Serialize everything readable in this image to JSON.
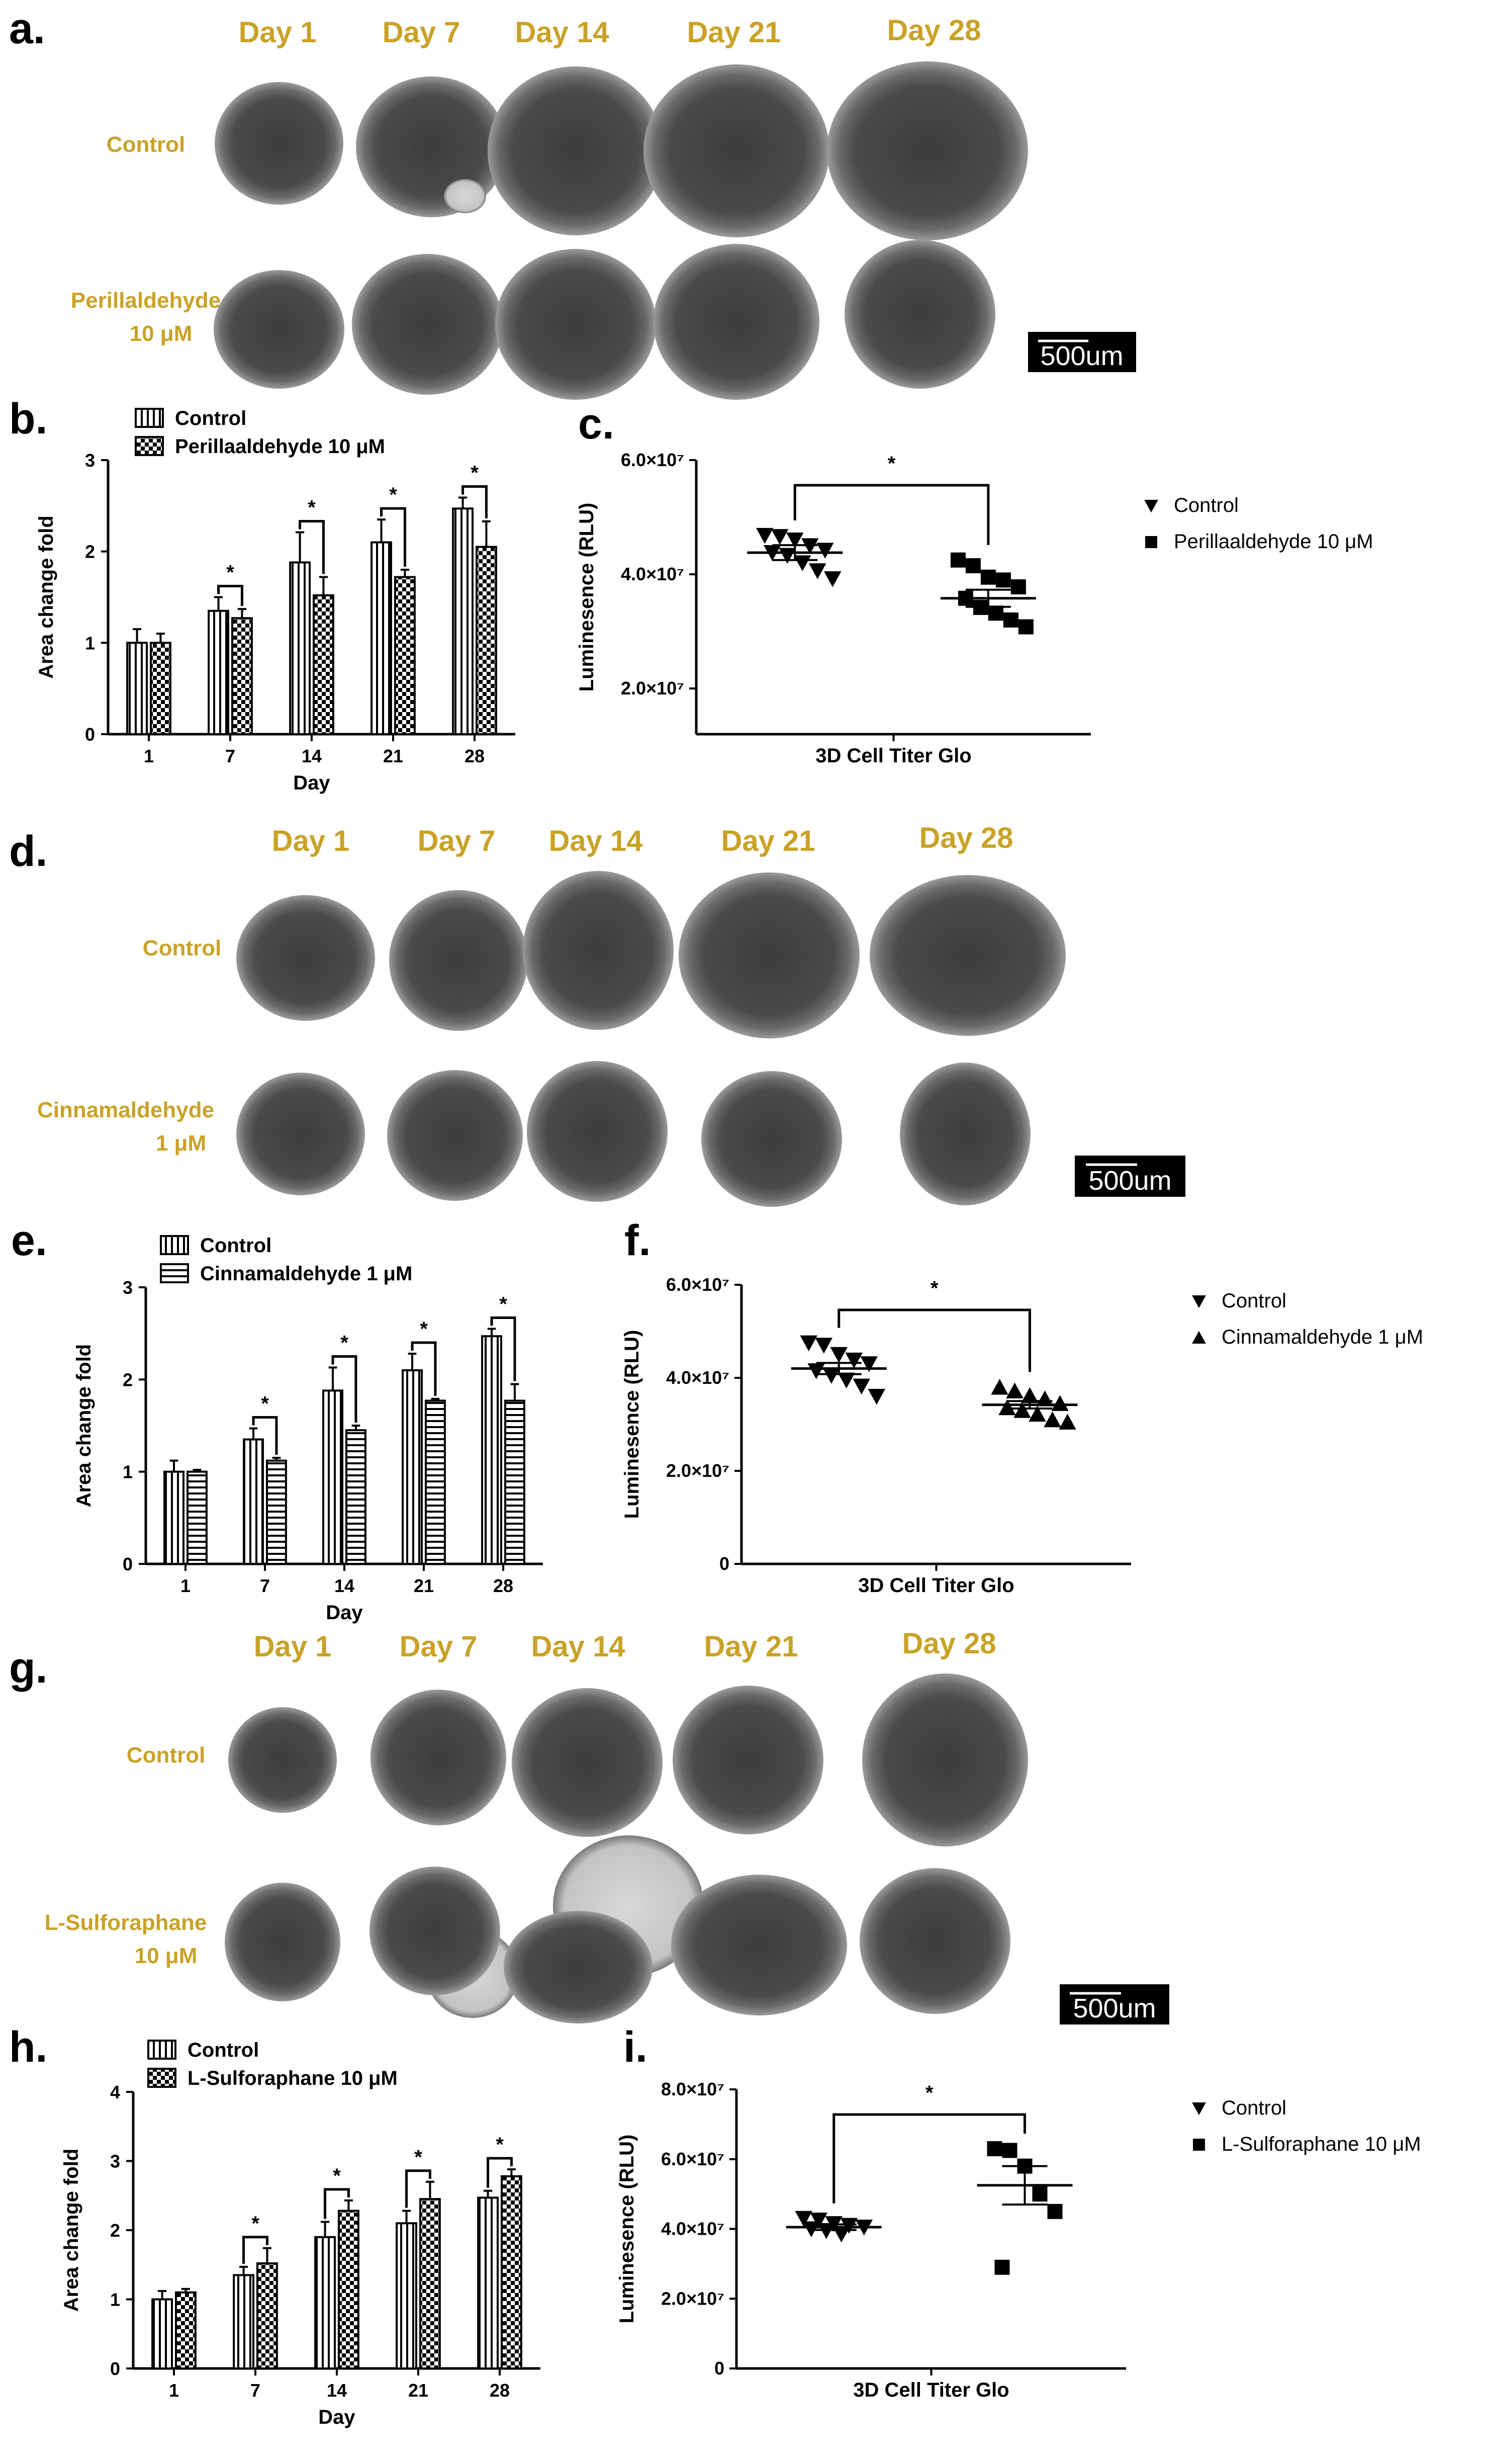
{
  "colors": {
    "label_gold": "#C9A227",
    "cell_dark": "#444444",
    "cell_halo": "#8a8a8a"
  },
  "panels": [
    {
      "letter": "a.",
      "days": [
        "Day 1",
        "Day 7",
        "Day 14",
        "Day 21",
        "Day 28"
      ],
      "row1": [
        "Control"
      ],
      "row2": [
        "Perillaldehyde",
        "10 μM"
      ],
      "scale": "500um"
    },
    {
      "letter": "d.",
      "days": [
        "Day 1",
        "Day 7",
        "Day 14",
        "Day 21",
        "Day 28"
      ],
      "row1": [
        "Control"
      ],
      "row2": [
        "Cinnamaldehyde",
        "1 μM"
      ],
      "scale": "500um"
    },
    {
      "letter": "g.",
      "days": [
        "Day 1",
        "Day 7",
        "Day 14",
        "Day 21",
        "Day 28"
      ],
      "row1": [
        "Control"
      ],
      "row2": [
        "L-Sulforaphane",
        "10 μM"
      ],
      "scale": "500um"
    }
  ],
  "chart_data": [
    {
      "panel": "b.",
      "type": "bar",
      "categories": [
        "1",
        "7",
        "14",
        "21",
        "28"
      ],
      "xlabel": "Day",
      "ylabel": "Area change fold",
      "ylim": [
        0,
        3
      ],
      "yticks": [
        "0",
        "1",
        "2",
        "3"
      ],
      "series": [
        {
          "name": "Control",
          "pattern": "vertical",
          "values": [
            1.0,
            1.35,
            1.88,
            2.1,
            2.47
          ],
          "err": [
            0.15,
            0.15,
            0.33,
            0.25,
            0.12
          ]
        },
        {
          "name": "Perillaaldehyde 10 μM",
          "pattern": "checker",
          "values": [
            1.0,
            1.27,
            1.52,
            1.72,
            2.05
          ],
          "err": [
            0.1,
            0.1,
            0.2,
            0.08,
            0.28
          ]
        }
      ],
      "significance": [
        "",
        "*",
        "*",
        "*",
        "*"
      ]
    },
    {
      "panel": "c.",
      "type": "scatter",
      "xlabel": "3D Cell Titer Glo",
      "ylabel": "Luminesence (RLU)",
      "ylim": [
        12000000.0,
        60000000.0
      ],
      "yticks": [
        {
          "v": 20000000.0,
          "label": "2.0×10⁷"
        },
        {
          "v": 40000000.0,
          "label": "4.0×10⁷"
        },
        {
          "v": 60000000.0,
          "label": "6.0×10⁷"
        }
      ],
      "series": [
        {
          "name": "Control",
          "marker": "tri-down",
          "points": [
            46800000.0,
            46600000.0,
            46000000.0,
            45000000.0,
            44200000.0,
            43800000.0,
            43300000.0,
            42000000.0,
            40600000.0,
            39200000.0
          ],
          "mean": 43800000.0,
          "sem": 1300000.0
        },
        {
          "name": "Perillaaldehyde 10 μM",
          "marker": "square",
          "points": [
            42500000.0,
            41500000.0,
            39500000.0,
            39000000.0,
            37800000.0,
            35800000.0,
            34200000.0,
            33200000.0,
            32000000.0,
            30800000.0
          ],
          "mean": 35800000.0,
          "sem": 1500000.0
        }
      ],
      "significance": "*"
    },
    {
      "panel": "e.",
      "type": "bar",
      "categories": [
        "1",
        "7",
        "14",
        "21",
        "28"
      ],
      "xlabel": "Day",
      "ylabel": "Area change fold",
      "ylim": [
        0,
        3
      ],
      "yticks": [
        "0",
        "1",
        "2",
        "3"
      ],
      "series": [
        {
          "name": "Control",
          "pattern": "vertical",
          "values": [
            1.0,
            1.35,
            1.88,
            2.1,
            2.47
          ],
          "err": [
            0.12,
            0.12,
            0.25,
            0.18,
            0.08
          ]
        },
        {
          "name": "Cinnamaldehyde 1 μM",
          "pattern": "horizontal",
          "values": [
            1.0,
            1.12,
            1.45,
            1.77,
            1.77
          ],
          "err": [
            0.02,
            0.03,
            0.05,
            0.02,
            0.18
          ]
        }
      ],
      "significance": [
        "",
        "*",
        "*",
        "*",
        "*"
      ]
    },
    {
      "panel": "f.",
      "type": "scatter",
      "xlabel": "3D Cell Titer Glo",
      "ylabel": "Luminesence (RLU)",
      "ylim": [
        0,
        60000000.0
      ],
      "yticks": [
        {
          "v": 0,
          "label": "0"
        },
        {
          "v": 20000000.0,
          "label": "2.0×10⁷"
        },
        {
          "v": 40000000.0,
          "label": "4.0×10⁷"
        },
        {
          "v": 60000000.0,
          "label": "6.0×10⁷"
        }
      ],
      "series": [
        {
          "name": "Control",
          "marker": "tri-down",
          "points": [
            47500000.0,
            47000000.0,
            45000000.0,
            43800000.0,
            43000000.0,
            41500000.0,
            40500000.0,
            39500000.0,
            38200000.0,
            36000000.0
          ],
          "mean": 42000000.0,
          "sem": 1200000.0
        },
        {
          "name": "Cinnamaldehyde 1 μM",
          "marker": "tri-up",
          "points": [
            38000000.0,
            37200000.0,
            36200000.0,
            35500000.0,
            34500000.0,
            33600000.0,
            33000000.0,
            32200000.0,
            31000000.0,
            30500000.0
          ],
          "mean": 34200000.0,
          "sem": 800000.0
        }
      ],
      "significance": "*"
    },
    {
      "panel": "h.",
      "type": "bar",
      "categories": [
        "1",
        "7",
        "14",
        "21",
        "28"
      ],
      "xlabel": "Day",
      "ylabel": "Area change fold",
      "ylim": [
        0,
        4
      ],
      "yticks": [
        "0",
        "1",
        "2",
        "3",
        "4"
      ],
      "series": [
        {
          "name": "Control",
          "pattern": "vertical",
          "values": [
            1.0,
            1.35,
            1.9,
            2.1,
            2.47
          ],
          "err": [
            0.12,
            0.12,
            0.22,
            0.18,
            0.1
          ]
        },
        {
          "name": "L-Sulforaphane 10 μM",
          "pattern": "checker",
          "values": [
            1.1,
            1.52,
            2.28,
            2.45,
            2.78
          ],
          "err": [
            0.05,
            0.22,
            0.15,
            0.25,
            0.1
          ]
        }
      ],
      "significance": [
        "",
        "*",
        "*",
        "*",
        "*"
      ]
    },
    {
      "panel": "i.",
      "type": "scatter",
      "xlabel": "3D Cell Titer Glo",
      "ylabel": "Luminesence (RLU)",
      "ylim": [
        0,
        80000000.0
      ],
      "yticks": [
        {
          "v": 0,
          "label": "0"
        },
        {
          "v": 20000000.0,
          "label": "2.0×10⁷"
        },
        {
          "v": 40000000.0,
          "label": "4.0×10⁷"
        },
        {
          "v": 60000000.0,
          "label": "6.0×10⁷"
        },
        {
          "v": 80000000.0,
          "label": "8.0×10⁷"
        }
      ],
      "series": [
        {
          "name": "Control",
          "marker": "tri-down",
          "points": [
            43000000.0,
            42500000.0,
            41500000.0,
            41000000.0,
            40500000.0,
            40000000.0,
            39500000.0,
            38500000.0
          ],
          "mean": 40500000.0,
          "sem": 800000.0
        },
        {
          "name": "L-Sulforaphane 10 μM",
          "marker": "square",
          "points": [
            63000000.0,
            62500000.0,
            58000000.0,
            50000000.0,
            45000000.0,
            29000000.0
          ],
          "mean": 52500000.0,
          "sem": 5500000.0
        }
      ],
      "significance": "*"
    }
  ]
}
